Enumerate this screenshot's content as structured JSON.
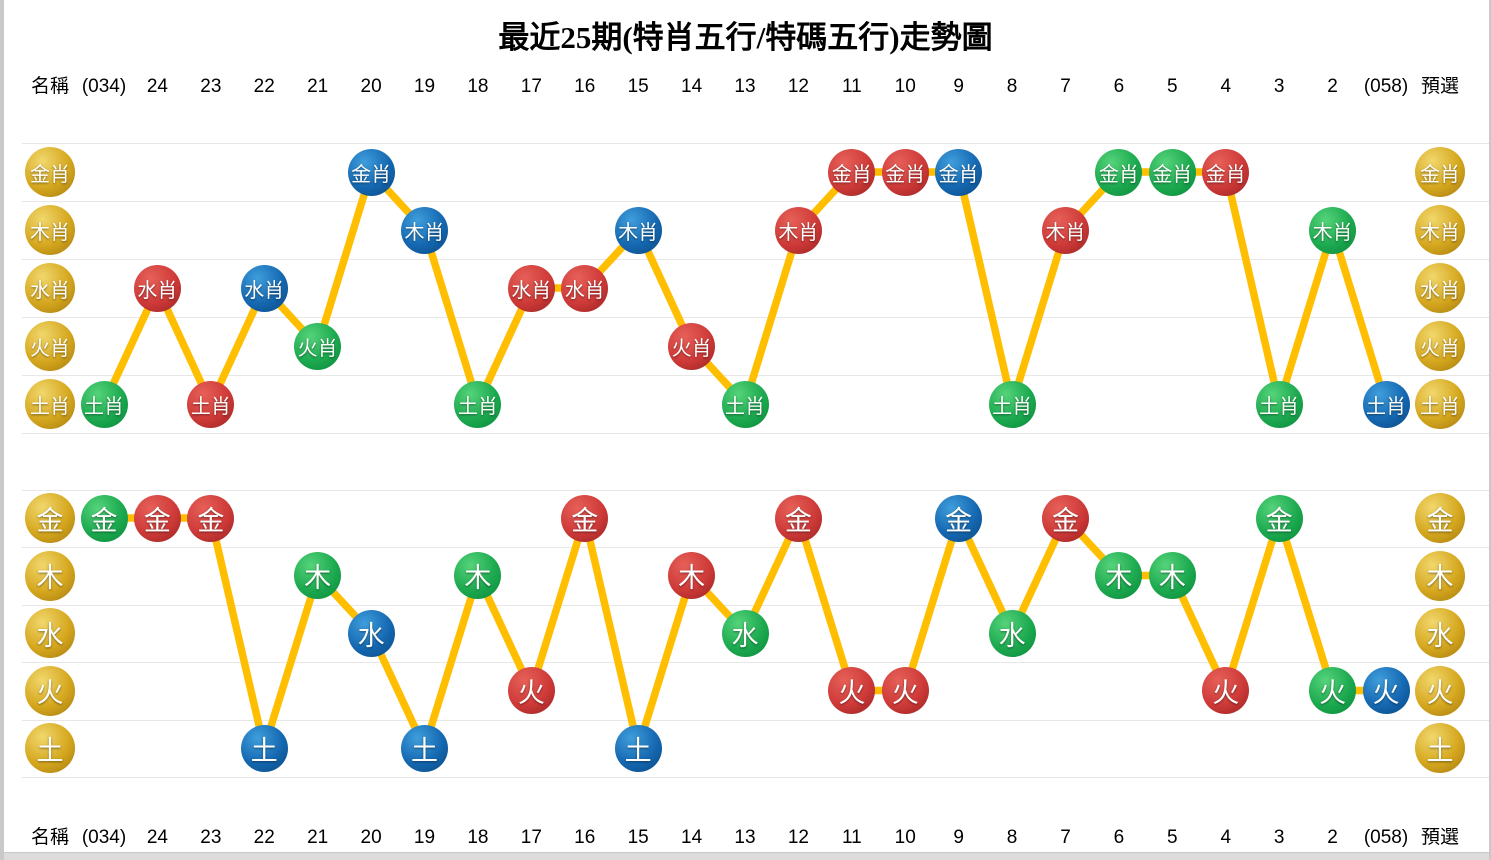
{
  "title": "最近25期(特肖五行/特碼五行)走勢圖",
  "axis": {
    "name_label": "名稱",
    "preselect_label": "預選",
    "periods": [
      "(034)",
      "24",
      "23",
      "22",
      "21",
      "20",
      "19",
      "18",
      "17",
      "16",
      "15",
      "14",
      "13",
      "12",
      "11",
      "10",
      "9",
      "8",
      "7",
      "6",
      "5",
      "4",
      "3",
      "2",
      "(058)"
    ]
  },
  "colors": {
    "gold": "#D5A71E",
    "red": "#CE3A38",
    "blue": "#1568B1",
    "green": "#1CA94F",
    "line": "#FFBE00",
    "gridline": "#E7E7E7"
  },
  "chart_data": [
    {
      "type": "line",
      "name": "特肖五行",
      "rows": [
        "金肖",
        "木肖",
        "水肖",
        "火肖",
        "土肖"
      ],
      "categories": [
        "(034)",
        "24",
        "23",
        "22",
        "21",
        "20",
        "19",
        "18",
        "17",
        "16",
        "15",
        "14",
        "13",
        "12",
        "11",
        "10",
        "9",
        "8",
        "7",
        "6",
        "5",
        "4",
        "3",
        "2",
        "(058)"
      ],
      "points": [
        {
          "x": "(034)",
          "row": "土肖",
          "color": "green"
        },
        {
          "x": "24",
          "row": "水肖",
          "color": "red"
        },
        {
          "x": "23",
          "row": "土肖",
          "color": "red"
        },
        {
          "x": "22",
          "row": "水肖",
          "color": "blue"
        },
        {
          "x": "21",
          "row": "火肖",
          "color": "green"
        },
        {
          "x": "20",
          "row": "金肖",
          "color": "blue"
        },
        {
          "x": "19",
          "row": "木肖",
          "color": "blue"
        },
        {
          "x": "18",
          "row": "土肖",
          "color": "green"
        },
        {
          "x": "17",
          "row": "水肖",
          "color": "red"
        },
        {
          "x": "16",
          "row": "水肖",
          "color": "red"
        },
        {
          "x": "15",
          "row": "木肖",
          "color": "blue"
        },
        {
          "x": "14",
          "row": "火肖",
          "color": "red"
        },
        {
          "x": "13",
          "row": "土肖",
          "color": "green"
        },
        {
          "x": "12",
          "row": "木肖",
          "color": "red"
        },
        {
          "x": "11",
          "row": "金肖",
          "color": "red"
        },
        {
          "x": "10",
          "row": "金肖",
          "color": "red"
        },
        {
          "x": "9",
          "row": "金肖",
          "color": "blue"
        },
        {
          "x": "8",
          "row": "土肖",
          "color": "green"
        },
        {
          "x": "7",
          "row": "木肖",
          "color": "red"
        },
        {
          "x": "6",
          "row": "金肖",
          "color": "green"
        },
        {
          "x": "5",
          "row": "金肖",
          "color": "green"
        },
        {
          "x": "4",
          "row": "金肖",
          "color": "red"
        },
        {
          "x": "3",
          "row": "土肖",
          "color": "green"
        },
        {
          "x": "2",
          "row": "木肖",
          "color": "green"
        },
        {
          "x": "(058)",
          "row": "土肖",
          "color": "blue"
        }
      ]
    },
    {
      "type": "line",
      "name": "特碼五行",
      "rows": [
        "金",
        "木",
        "水",
        "火",
        "土"
      ],
      "categories": [
        "(034)",
        "24",
        "23",
        "22",
        "21",
        "20",
        "19",
        "18",
        "17",
        "16",
        "15",
        "14",
        "13",
        "12",
        "11",
        "10",
        "9",
        "8",
        "7",
        "6",
        "5",
        "4",
        "3",
        "2",
        "(058)"
      ],
      "points": [
        {
          "x": "(034)",
          "row": "金",
          "color": "green"
        },
        {
          "x": "24",
          "row": "金",
          "color": "red"
        },
        {
          "x": "23",
          "row": "金",
          "color": "red"
        },
        {
          "x": "22",
          "row": "土",
          "color": "blue"
        },
        {
          "x": "21",
          "row": "木",
          "color": "green"
        },
        {
          "x": "20",
          "row": "水",
          "color": "blue"
        },
        {
          "x": "19",
          "row": "土",
          "color": "blue"
        },
        {
          "x": "18",
          "row": "木",
          "color": "green"
        },
        {
          "x": "17",
          "row": "火",
          "color": "red"
        },
        {
          "x": "16",
          "row": "金",
          "color": "red"
        },
        {
          "x": "15",
          "row": "土",
          "color": "blue"
        },
        {
          "x": "14",
          "row": "木",
          "color": "red"
        },
        {
          "x": "13",
          "row": "水",
          "color": "green"
        },
        {
          "x": "12",
          "row": "金",
          "color": "red"
        },
        {
          "x": "11",
          "row": "火",
          "color": "red"
        },
        {
          "x": "10",
          "row": "火",
          "color": "red"
        },
        {
          "x": "9",
          "row": "金",
          "color": "blue"
        },
        {
          "x": "8",
          "row": "水",
          "color": "green"
        },
        {
          "x": "7",
          "row": "金",
          "color": "red"
        },
        {
          "x": "6",
          "row": "木",
          "color": "green"
        },
        {
          "x": "5",
          "row": "木",
          "color": "green"
        },
        {
          "x": "4",
          "row": "火",
          "color": "red"
        },
        {
          "x": "3",
          "row": "金",
          "color": "green"
        },
        {
          "x": "2",
          "row": "火",
          "color": "green"
        },
        {
          "x": "(058)",
          "row": "火",
          "color": "blue"
        }
      ]
    }
  ]
}
